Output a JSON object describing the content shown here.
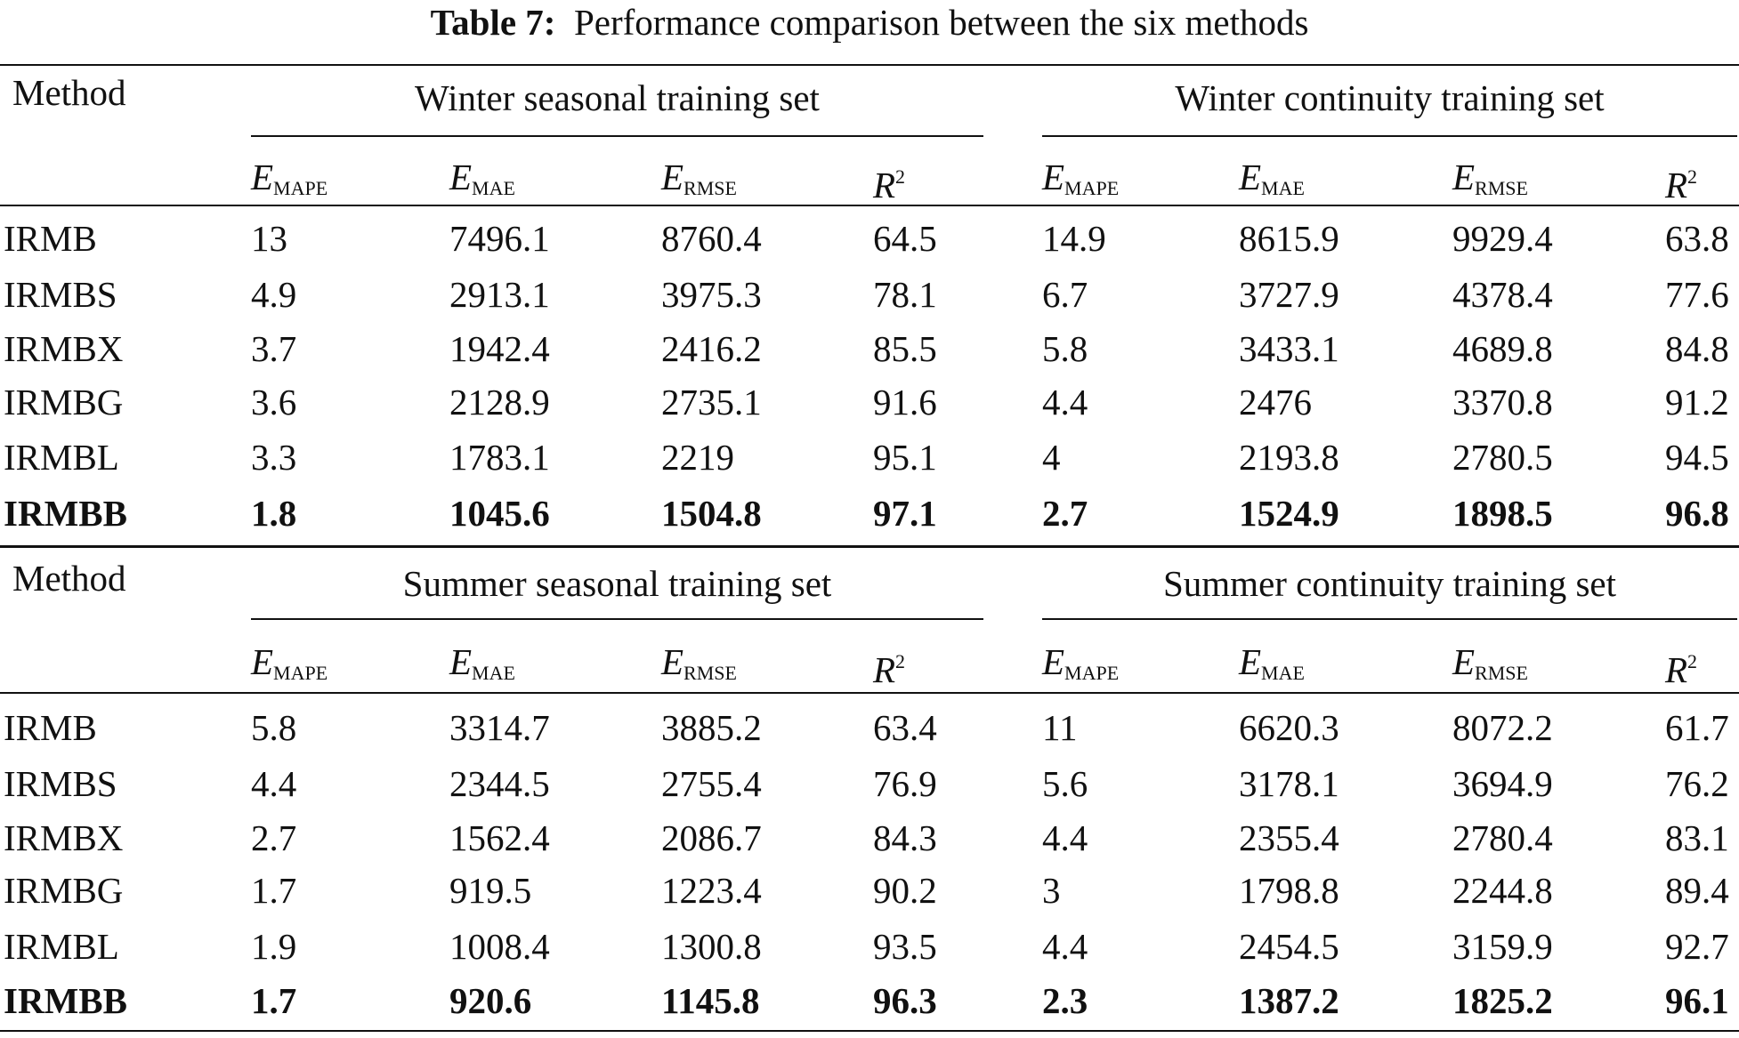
{
  "title": {
    "label": "Table 7:",
    "text": "Performance comparison between the six methods"
  },
  "blocks": [
    {
      "method_header": "Method",
      "groups": [
        {
          "title": "Winter seasonal training set",
          "columns": [
            {
              "base": "E",
              "sub": "MAPE"
            },
            {
              "base": "E",
              "sub": "MAE"
            },
            {
              "base": "E",
              "sub": "RMSE"
            },
            {
              "base": "R",
              "sup": "2"
            }
          ]
        },
        {
          "title": "Winter continuity training set",
          "columns": [
            {
              "base": "E",
              "sub": "MAPE"
            },
            {
              "base": "E",
              "sub": "MAE"
            },
            {
              "base": "E",
              "sub": "RMSE"
            },
            {
              "base": "R",
              "sup": "2"
            }
          ]
        }
      ],
      "rows": [
        {
          "method": "IRMB",
          "values": [
            "13",
            "7496.1",
            "8760.4",
            "64.5",
            "14.9",
            "8615.9",
            "9929.4",
            "63.8"
          ]
        },
        {
          "method": "IRMBS",
          "values": [
            "4.9",
            "2913.1",
            "3975.3",
            "78.1",
            "6.7",
            "3727.9",
            "4378.4",
            "77.6"
          ]
        },
        {
          "method": "IRMBX",
          "values": [
            "3.7",
            "1942.4",
            "2416.2",
            "85.5",
            "5.8",
            "3433.1",
            "4689.8",
            "84.8"
          ]
        },
        {
          "method": "IRMBG",
          "values": [
            "3.6",
            "2128.9",
            "2735.1",
            "91.6",
            "4.4",
            "2476",
            "3370.8",
            "91.2"
          ]
        },
        {
          "method": "IRMBL",
          "values": [
            "3.3",
            "1783.1",
            "2219",
            "95.1",
            "4",
            "2193.8",
            "2780.5",
            "94.5"
          ]
        },
        {
          "method": "IRMBB",
          "values": [
            "1.8",
            "1045.6",
            "1504.8",
            "97.1",
            "2.7",
            "1524.9",
            "1898.5",
            "96.8"
          ]
        }
      ]
    },
    {
      "method_header": "Method",
      "groups": [
        {
          "title": "Summer seasonal training set",
          "columns": [
            {
              "base": "E",
              "sub": "MAPE"
            },
            {
              "base": "E",
              "sub": "MAE"
            },
            {
              "base": "E",
              "sub": "RMSE"
            },
            {
              "base": "R",
              "sup": "2"
            }
          ]
        },
        {
          "title": "Summer continuity training set",
          "columns": [
            {
              "base": "E",
              "sub": "MAPE"
            },
            {
              "base": "E",
              "sub": "MAE"
            },
            {
              "base": "E",
              "sub": "RMSE"
            },
            {
              "base": "R",
              "sup": "2"
            }
          ]
        }
      ],
      "rows": [
        {
          "method": "IRMB",
          "values": [
            "5.8",
            "3314.7",
            "3885.2",
            "63.4",
            "11",
            "6620.3",
            "8072.2",
            "61.7"
          ]
        },
        {
          "method": "IRMBS",
          "values": [
            "4.4",
            "2344.5",
            "2755.4",
            "76.9",
            "5.6",
            "3178.1",
            "3694.9",
            "76.2"
          ]
        },
        {
          "method": "IRMBX",
          "values": [
            "2.7",
            "1562.4",
            "2086.7",
            "84.3",
            "4.4",
            "2355.4",
            "2780.4",
            "83.1"
          ]
        },
        {
          "method": "IRMBG",
          "values": [
            "1.7",
            "919.5",
            "1223.4",
            "90.2",
            "3",
            "1798.8",
            "2244.8",
            "89.4"
          ]
        },
        {
          "method": "IRMBL",
          "values": [
            "1.9",
            "1008.4",
            "1300.8",
            "93.5",
            "4.4",
            "2454.5",
            "3159.9",
            "92.7"
          ]
        },
        {
          "method": "IRMBB",
          "values": [
            "1.7",
            "920.6",
            "1145.8",
            "96.3",
            "2.3",
            "1387.2",
            "1825.2",
            "96.1"
          ]
        }
      ]
    }
  ]
}
